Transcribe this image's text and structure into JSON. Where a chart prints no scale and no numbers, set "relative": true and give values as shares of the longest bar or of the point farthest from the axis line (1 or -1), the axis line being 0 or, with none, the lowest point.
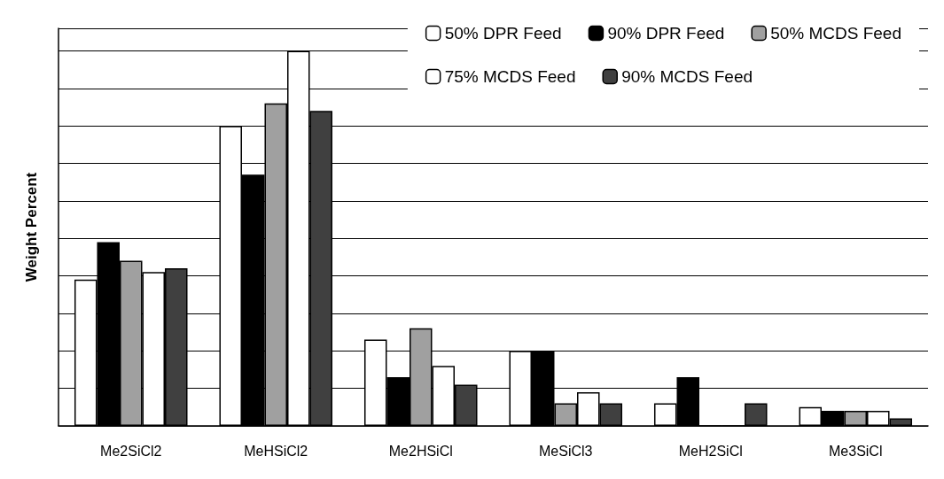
{
  "chart_data": {
    "type": "bar",
    "relative": true,
    "ylabel": "Weight Percent",
    "categories": [
      "Me2SiCl2",
      "MeHSiCl2",
      "Me2HSiCl",
      "MeSiCl3",
      "MeH2SiCl",
      "Me3SiCl"
    ],
    "series": [
      {
        "name": "50% DPR Feed",
        "color": "#ffffff",
        "values": [
          0.39,
          0.8,
          0.23,
          0.2,
          0.06,
          0.05
        ]
      },
      {
        "name": "90% DPR Feed",
        "color": "#000000",
        "values": [
          0.49,
          0.67,
          0.13,
          0.2,
          0.13,
          0.04
        ]
      },
      {
        "name": "50% MCDS Feed",
        "color": "#a0a0a0",
        "values": [
          0.44,
          0.86,
          0.26,
          0.06,
          0,
          0.04
        ]
      },
      {
        "name": "75% MCDS Feed",
        "color": "#ffffff",
        "values": [
          0.41,
          1,
          0.16,
          0.09,
          0,
          0.04
        ]
      },
      {
        "name": "90% MCDS Feed",
        "color": "#404040",
        "values": [
          0.42,
          0.84,
          0.11,
          0.06,
          0.06,
          0.02
        ]
      }
    ],
    "grid": "y",
    "legend": "top right"
  }
}
